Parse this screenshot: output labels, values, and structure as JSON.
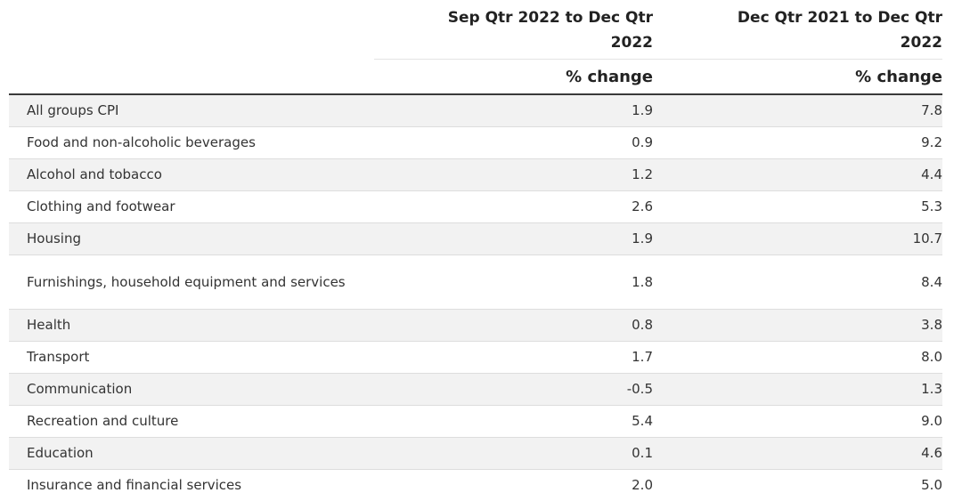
{
  "table": {
    "headers": {
      "col1": "Sep Qtr 2022 to Dec Qtr 2022",
      "col2": "Dec Qtr 2021 to Dec Qtr 2022",
      "unit1": "% change",
      "unit2": "% change"
    },
    "rows": [
      {
        "category": "All groups CPI",
        "qtr": "1.9",
        "year": "7.8"
      },
      {
        "category": "Food and non-alcoholic beverages",
        "qtr": "0.9",
        "year": "9.2"
      },
      {
        "category": "Alcohol and tobacco",
        "qtr": "1.2",
        "year": "4.4"
      },
      {
        "category": "Clothing and footwear",
        "qtr": "2.6",
        "year": "5.3"
      },
      {
        "category": "Housing",
        "qtr": "1.9",
        "year": "10.7"
      },
      {
        "category": "Furnishings, household equipment and services",
        "qtr": "1.8",
        "year": "8.4"
      },
      {
        "category": "Health",
        "qtr": "0.8",
        "year": "3.8"
      },
      {
        "category": "Transport",
        "qtr": "1.7",
        "year": "8.0"
      },
      {
        "category": "Communication",
        "qtr": "-0.5",
        "year": "1.3"
      },
      {
        "category": "Recreation and culture",
        "qtr": "5.4",
        "year": "9.0"
      },
      {
        "category": "Education",
        "qtr": "0.1",
        "year": "4.6"
      },
      {
        "category": "Insurance and financial services",
        "qtr": "2.0",
        "year": "5.0"
      }
    ]
  }
}
